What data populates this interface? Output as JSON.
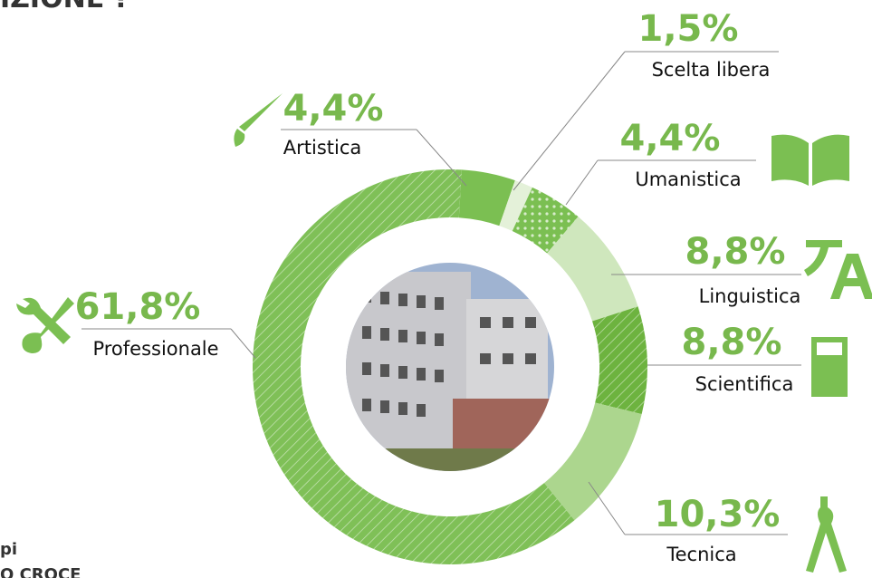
{
  "chart_data": {
    "type": "donut",
    "categories": [
      "Artistica",
      "Scelta libera",
      "Umanistica",
      "Linguistica",
      "Scientifica",
      "Tecnica",
      "Professionale"
    ],
    "values": [
      4.4,
      1.5,
      4.4,
      8.8,
      8.8,
      10.3,
      61.8
    ],
    "value_labels": [
      "4,4%",
      "1,5%",
      "4,4%",
      "8,8%",
      "8,8%",
      "10,3%",
      "61,8%"
    ],
    "colors": [
      "#7bbf52",
      "#e4f1d9",
      "#7bbf52",
      "#cfe7bd",
      "#6db33f",
      "#acd68e",
      "#7fc057"
    ],
    "patterns": [
      "none",
      "none",
      "dots",
      "none",
      "hatch",
      "none",
      "hatch"
    ],
    "fragments": [
      "IZIONE ?",
      "pi",
      "O CROCE"
    ]
  }
}
